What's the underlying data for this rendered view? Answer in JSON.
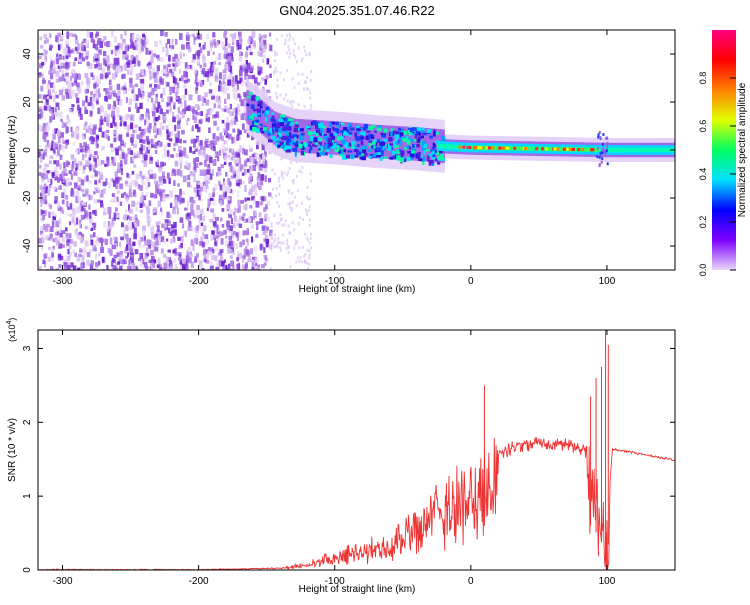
{
  "title": "GN04.2025.351.07.46.R22",
  "chart_data": [
    {
      "type": "heatmap",
      "name": "spectrogram",
      "xlabel": "Height of straight line (km)",
      "ylabel": "Frequency (Hz)",
      "xlim": [
        -318,
        150
      ],
      "ylim": [
        -50,
        50
      ],
      "xticks": [
        -300,
        -200,
        -100,
        0,
        100
      ],
      "yticks": [
        -40,
        -20,
        0,
        20,
        40
      ],
      "ridge": [
        {
          "x": -165,
          "y": 18
        },
        {
          "x": -155,
          "y": 14
        },
        {
          "x": -145,
          "y": 9
        },
        {
          "x": -130,
          "y": 6
        },
        {
          "x": -100,
          "y": 5
        },
        {
          "x": -70,
          "y": 3.5
        },
        {
          "x": -40,
          "y": 2.5
        },
        {
          "x": -20,
          "y": 1.5
        },
        {
          "x": 0,
          "y": 1
        },
        {
          "x": 50,
          "y": 0.5
        },
        {
          "x": 100,
          "y": 0
        },
        {
          "x": 150,
          "y": 0
        }
      ],
      "noise_region": {
        "x": [
          -318,
          -148
        ],
        "y": [
          -50,
          50
        ]
      },
      "colorbar": {
        "label": "Normalized spectral amplitude",
        "range": [
          0,
          1
        ],
        "ticks": [
          0.0,
          0.2,
          0.4,
          0.6,
          0.8
        ],
        "tick_labels": [
          "0.0",
          "0.2",
          "0.4",
          "0.6",
          "0.8"
        ],
        "colors": [
          "#e8d8f8",
          "#8000ff",
          "#0000ff",
          "#00e0ff",
          "#00ff60",
          "#e0ff00",
          "#ff8000",
          "#ff0000",
          "#ff0080"
        ]
      }
    },
    {
      "type": "line",
      "name": "snr",
      "xlabel": "Height of straight line (km)",
      "ylabel": "SNR (10 * v/v)",
      "scale_label": "(x10",
      "scale_exp": "4",
      "scale_close": ")",
      "xlim": [
        -318,
        150
      ],
      "ylim": [
        0,
        3.25
      ],
      "xticks": [
        -300,
        -200,
        -100,
        0,
        100
      ],
      "yticks": [
        0,
        1,
        2,
        3
      ],
      "color": "#ee3333",
      "envelope": [
        {
          "x": -318,
          "y": 0.01
        },
        {
          "x": -200,
          "y": 0.01
        },
        {
          "x": -140,
          "y": 0.03
        },
        {
          "x": -120,
          "y": 0.1
        },
        {
          "x": -100,
          "y": 0.25
        },
        {
          "x": -80,
          "y": 0.35
        },
        {
          "x": -60,
          "y": 0.5
        },
        {
          "x": -40,
          "y": 0.75
        },
        {
          "x": -25,
          "y": 1.05
        },
        {
          "x": -10,
          "y": 1.3
        },
        {
          "x": 10,
          "y": 1.5
        },
        {
          "x": 30,
          "y": 1.72
        },
        {
          "x": 50,
          "y": 1.8
        },
        {
          "x": 70,
          "y": 1.78
        },
        {
          "x": 85,
          "y": 1.68
        },
        {
          "x": 95,
          "y": 1.1
        },
        {
          "x": 100,
          "y": 0.6
        },
        {
          "x": 104,
          "y": 1.65
        },
        {
          "x": 120,
          "y": 1.6
        },
        {
          "x": 150,
          "y": 1.5
        }
      ],
      "spikes": [
        {
          "x": 10,
          "y": 2.5
        },
        {
          "x": 88,
          "y": 2.35
        },
        {
          "x": 92,
          "y": 2.6
        },
        {
          "x": 96,
          "y": 2.75
        },
        {
          "x": 99,
          "y": 3.25
        },
        {
          "x": 101,
          "y": 3.05
        }
      ]
    }
  ]
}
